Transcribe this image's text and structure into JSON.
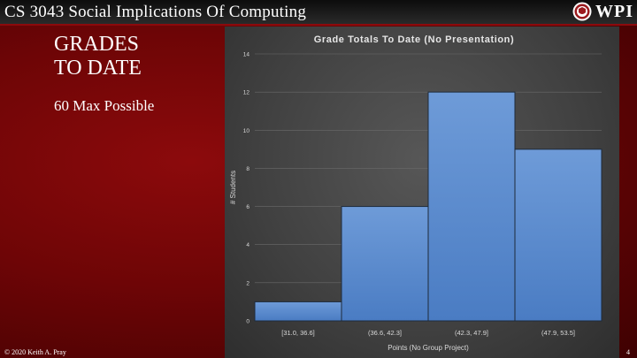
{
  "header": {
    "course_title": "CS 3043 Social Implications Of Computing",
    "logo_text": "WPI"
  },
  "slide": {
    "heading_line1": "GRADES",
    "heading_line2": "TO DATE",
    "subtext": "60 Max Possible"
  },
  "footer": {
    "copyright": "© 2020 Keith A. Pray",
    "page_number": "4"
  },
  "colors": {
    "bar_fill_top": "#6e9bd8",
    "bar_fill_bottom": "#4a7cc3",
    "bar_stroke": "#1e2a3a",
    "accent_red": "#8c0a0c"
  },
  "chart_data": {
    "type": "bar",
    "title": "Grade Totals To Date (No Presentation)",
    "xlabel": "Points (No Group Project)",
    "ylabel": "# Students",
    "categories": [
      "[31.0, 36.6]",
      "(36.6, 42.3]",
      "(42.3, 47.9]",
      "(47.9, 53.5]"
    ],
    "values": [
      1,
      6,
      12,
      9
    ],
    "ylim": [
      0,
      14
    ],
    "yticks": [
      0,
      2,
      4,
      6,
      8,
      10,
      12,
      14
    ],
    "grid": true,
    "legend": "none"
  }
}
